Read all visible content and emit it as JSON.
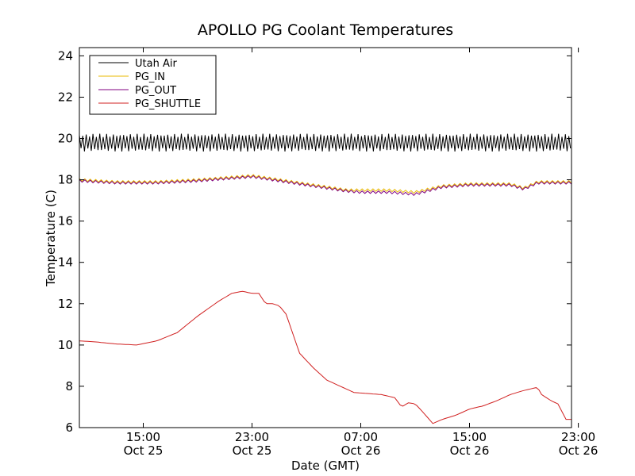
{
  "chart_data": {
    "type": "line",
    "title": "APOLLO PG Coolant Temperatures",
    "xlabel": "Date (GMT)",
    "ylabel": "Temperature (C)",
    "xlim": [
      10.3,
      46.5
    ],
    "ylim": [
      6,
      24.4
    ],
    "yticks": [
      6,
      8,
      10,
      12,
      14,
      16,
      18,
      20,
      22,
      24
    ],
    "xticks": [
      {
        "x": 15,
        "line1": "15:00",
        "line2": "Oct 25"
      },
      {
        "x": 23,
        "line1": "23:00",
        "line2": "Oct 25"
      },
      {
        "x": 31,
        "line1": "07:00",
        "line2": "Oct 26"
      },
      {
        "x": 39,
        "line1": "15:00",
        "line2": "Oct 26"
      },
      {
        "x": 47,
        "line1": "23:00",
        "line2": "Oct 26"
      }
    ],
    "legend_position": "top-left",
    "x_units": "hours since Oct 25 00:00 GMT",
    "series": [
      {
        "name": "Utah Air",
        "color": "#000000",
        "style": "oscillating",
        "center": 19.8,
        "amplitude": 0.35,
        "period_hours": 0.25,
        "x": [
          10.3,
          46.5
        ],
        "y": [
          19.8,
          19.8
        ]
      },
      {
        "name": "PG_IN",
        "color": "#e8b800",
        "x": [
          10.3,
          13,
          16,
          19,
          21,
          23,
          24,
          25,
          28,
          30,
          31,
          33,
          35,
          37,
          39,
          41,
          42,
          43,
          44,
          45,
          46.5
        ],
        "y": [
          18.0,
          17.9,
          17.9,
          18.0,
          18.1,
          18.2,
          18.1,
          18.0,
          17.7,
          17.5,
          17.5,
          17.5,
          17.4,
          17.7,
          17.8,
          17.8,
          17.8,
          17.6,
          17.9,
          17.9,
          17.9
        ]
      },
      {
        "name": "PG_OUT",
        "color": "#800080",
        "x": [
          10.3,
          13,
          16,
          19,
          21,
          23,
          24,
          25,
          28,
          30,
          31,
          33,
          35,
          37,
          39,
          41,
          42,
          43,
          44,
          45,
          46.5
        ],
        "y": [
          17.95,
          17.85,
          17.85,
          17.95,
          18.05,
          18.15,
          18.05,
          17.95,
          17.65,
          17.45,
          17.4,
          17.4,
          17.3,
          17.65,
          17.75,
          17.75,
          17.75,
          17.55,
          17.85,
          17.85,
          17.85
        ]
      },
      {
        "name": "PG_SHUTTLE",
        "color": "#d02020",
        "x": [
          10.3,
          11.5,
          13,
          14.5,
          16,
          17.5,
          19,
          20.5,
          21.5,
          22.3,
          23,
          23.5,
          24.0,
          24.5,
          25.0,
          25.5,
          26.5,
          27.5,
          28.5,
          29.5,
          30.5,
          31.5,
          32.5,
          33.5,
          34.0,
          34.5,
          35.0,
          35.5,
          36.3,
          37.0,
          38.0,
          39.0,
          40.0,
          41.0,
          42.0,
          43.0,
          44.0,
          44.3,
          45.0,
          45.5,
          46.1,
          46.5
        ],
        "y": [
          10.2,
          10.15,
          10.05,
          10.0,
          10.2,
          10.6,
          11.4,
          12.1,
          12.5,
          12.6,
          12.5,
          12.5,
          12.0,
          12.0,
          11.9,
          11.5,
          9.6,
          8.9,
          8.3,
          8.0,
          7.7,
          7.65,
          7.6,
          7.45,
          7.0,
          7.2,
          7.15,
          6.8,
          6.2,
          6.4,
          6.6,
          6.9,
          7.05,
          7.3,
          7.6,
          7.8,
          7.95,
          7.6,
          7.3,
          7.15,
          6.4,
          6.4
        ]
      }
    ]
  }
}
